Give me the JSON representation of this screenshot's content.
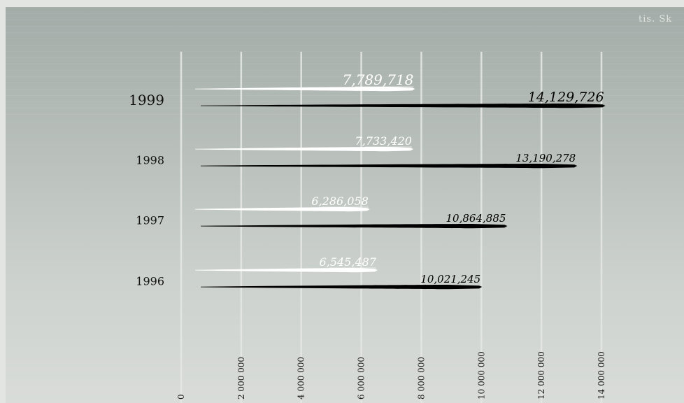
{
  "unit_label": "tis. Sk",
  "chart_data": {
    "type": "bar",
    "orientation": "horizontal",
    "categories": [
      "1999",
      "1998",
      "1997",
      "1996"
    ],
    "series": [
      {
        "color": "#ffffff",
        "values": [
          7789718,
          7733420,
          6286058,
          6545487
        ]
      },
      {
        "color": "#000000",
        "values": [
          14129726,
          13190278,
          10864885,
          10021245
        ]
      }
    ],
    "data_labels": [
      [
        "7,789,718",
        "7,733,420",
        "6,286,058",
        "6,545,487"
      ],
      [
        "14,129,726",
        "13,190,278",
        "10,864,885",
        "10,021,245"
      ]
    ],
    "x_ticks": [
      {
        "value": 0,
        "label": "0"
      },
      {
        "value": 2000000,
        "label": "2 000 000"
      },
      {
        "value": 4000000,
        "label": "4 000 000"
      },
      {
        "value": 6000000,
        "label": "6 000 000"
      },
      {
        "value": 8000000,
        "label": "8 000 000"
      },
      {
        "value": 10000000,
        "label": "10 000 000"
      },
      {
        "value": 12000000,
        "label": "12 000 000"
      },
      {
        "value": 14000000,
        "label": "14 000 000"
      }
    ],
    "xlim": [
      0,
      14000000
    ],
    "grid": true,
    "legend": "none"
  }
}
